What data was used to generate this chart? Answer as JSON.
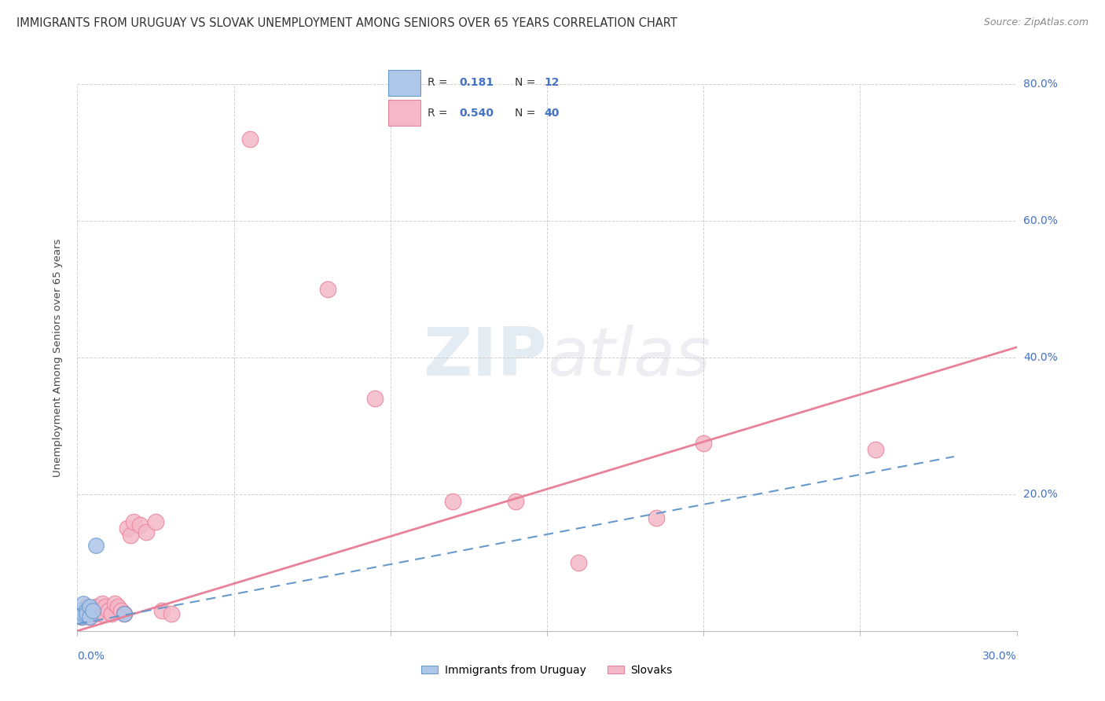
{
  "title": "IMMIGRANTS FROM URUGUAY VS SLOVAK UNEMPLOYMENT AMONG SENIORS OVER 65 YEARS CORRELATION CHART",
  "source": "Source: ZipAtlas.com",
  "ylabel": "Unemployment Among Seniors over 65 years",
  "watermark_zip": "ZIP",
  "watermark_atlas": "atlas",
  "background_color": "#ffffff",
  "grid_color": "#cccccc",
  "ytick_positions": [
    0.0,
    0.2,
    0.4,
    0.6,
    0.8
  ],
  "ytick_labels_right": [
    "",
    "20.0%",
    "40.0%",
    "60.0%",
    "80.0%"
  ],
  "xlim": [
    0.0,
    0.3
  ],
  "ylim": [
    0.0,
    0.8
  ],
  "scatter_blue": {
    "x": [
      0.0005,
      0.001,
      0.0015,
      0.002,
      0.002,
      0.003,
      0.003,
      0.004,
      0.004,
      0.005,
      0.006,
      0.015
    ],
    "y": [
      0.025,
      0.03,
      0.02,
      0.025,
      0.04,
      0.03,
      0.025,
      0.035,
      0.02,
      0.03,
      0.125,
      0.025
    ],
    "color": "#aec6e8",
    "edge_color": "#6699cc"
  },
  "scatter_pink": {
    "x": [
      0.0005,
      0.001,
      0.0015,
      0.002,
      0.0025,
      0.003,
      0.003,
      0.004,
      0.004,
      0.005,
      0.005,
      0.006,
      0.006,
      0.007,
      0.008,
      0.008,
      0.009,
      0.01,
      0.011,
      0.012,
      0.013,
      0.014,
      0.015,
      0.016,
      0.017,
      0.018,
      0.02,
      0.022,
      0.025,
      0.027,
      0.03,
      0.055,
      0.08,
      0.095,
      0.12,
      0.14,
      0.16,
      0.185,
      0.2,
      0.255
    ],
    "y": [
      0.025,
      0.03,
      0.02,
      0.025,
      0.03,
      0.035,
      0.025,
      0.03,
      0.02,
      0.025,
      0.03,
      0.025,
      0.035,
      0.03,
      0.025,
      0.04,
      0.035,
      0.03,
      0.025,
      0.04,
      0.035,
      0.03,
      0.025,
      0.15,
      0.14,
      0.16,
      0.155,
      0.145,
      0.16,
      0.03,
      0.025,
      0.72,
      0.5,
      0.34,
      0.19,
      0.19,
      0.1,
      0.165,
      0.275,
      0.265
    ],
    "color": "#f4b8c8",
    "edge_color": "#e8829a"
  },
  "trend_pink": {
    "x": [
      0.0,
      0.3
    ],
    "y": [
      0.0,
      0.415
    ],
    "color": "#e8829a",
    "linewidth": 2.0
  },
  "trend_blue": {
    "x": [
      0.0,
      0.28
    ],
    "y": [
      0.01,
      0.255
    ],
    "color": "#6699cc",
    "linewidth": 1.5
  },
  "legend_R_blue": "0.181",
  "legend_N_blue": "12",
  "legend_R_pink": "0.540",
  "legend_N_pink": "40",
  "legend_color_blue": "#aec6e8",
  "legend_color_pink": "#f4b8c8",
  "legend_border_blue": "#6699cc",
  "legend_border_pink": "#e8829a",
  "bottom_legend_blue": "Immigrants from Uruguay",
  "bottom_legend_pink": "Slovaks",
  "text_color_blue": "#4472c4",
  "text_color_dark": "#333333",
  "text_color_source": "#888888"
}
